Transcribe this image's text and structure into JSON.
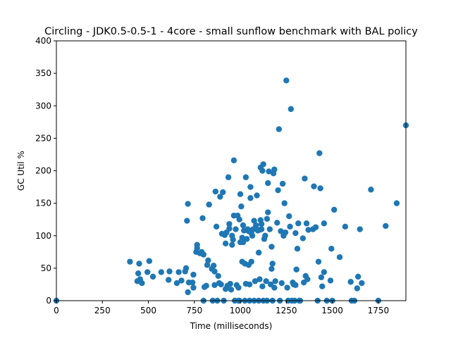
{
  "chart_data": {
    "type": "scatter",
    "title": "Circling - JDK0.5-0.5-1 - 4core -  small sunflow benchmark with BAL policy",
    "xlabel": "Time (milliseconds)",
    "ylabel": "GC Util %",
    "xlim": [
      0,
      1900
    ],
    "ylim": [
      0,
      400
    ],
    "xticks": [
      0,
      250,
      500,
      750,
      1000,
      1250,
      1500,
      1750
    ],
    "yticks": [
      0,
      50,
      100,
      150,
      200,
      250,
      300,
      350,
      400
    ],
    "grid": false,
    "color": "#1f77b4",
    "points": [
      [
        0,
        0
      ],
      [
        400,
        60
      ],
      [
        440,
        30
      ],
      [
        445,
        42
      ],
      [
        450,
        57
      ],
      [
        455,
        33
      ],
      [
        465,
        27
      ],
      [
        495,
        44
      ],
      [
        505,
        61
      ],
      [
        525,
        37
      ],
      [
        570,
        44
      ],
      [
        610,
        32
      ],
      [
        615,
        45
      ],
      [
        655,
        27
      ],
      [
        665,
        44
      ],
      [
        680,
        31
      ],
      [
        700,
        45
      ],
      [
        705,
        50
      ],
      [
        710,
        123
      ],
      [
        715,
        149
      ],
      [
        715,
        13
      ],
      [
        720,
        28
      ],
      [
        740,
        28
      ],
      [
        745,
        20
      ],
      [
        745,
        40
      ],
      [
        760,
        75
      ],
      [
        765,
        86
      ],
      [
        765,
        81
      ],
      [
        780,
        73
      ],
      [
        790,
        75
      ],
      [
        795,
        127
      ],
      [
        800,
        0
      ],
      [
        800,
        71
      ],
      [
        805,
        21
      ],
      [
        815,
        23
      ],
      [
        820,
        55
      ],
      [
        825,
        62
      ],
      [
        830,
        148
      ],
      [
        845,
        49
      ],
      [
        850,
        0
      ],
      [
        855,
        54
      ],
      [
        860,
        45
      ],
      [
        860,
        24
      ],
      [
        865,
        168
      ],
      [
        870,
        114
      ],
      [
        875,
        0
      ],
      [
        880,
        38
      ],
      [
        885,
        27
      ],
      [
        890,
        160
      ],
      [
        895,
        25
      ],
      [
        900,
        103
      ],
      [
        905,
        167
      ],
      [
        910,
        0
      ],
      [
        915,
        101
      ],
      [
        920,
        18
      ],
      [
        920,
        88
      ],
      [
        925,
        105
      ],
      [
        930,
        23
      ],
      [
        935,
        190
      ],
      [
        940,
        118
      ],
      [
        940,
        111
      ],
      [
        945,
        26
      ],
      [
        950,
        17
      ],
      [
        955,
        100
      ],
      [
        955,
        86
      ],
      [
        960,
        94
      ],
      [
        965,
        216
      ],
      [
        965,
        131
      ],
      [
        970,
        0
      ],
      [
        975,
        110
      ],
      [
        980,
        24
      ],
      [
        985,
        131
      ],
      [
        990,
        0
      ],
      [
        990,
        20
      ],
      [
        995,
        0
      ],
      [
        995,
        125
      ],
      [
        1000,
        164
      ],
      [
        1000,
        90
      ],
      [
        1005,
        145
      ],
      [
        1010,
        97
      ],
      [
        1010,
        60
      ],
      [
        1015,
        90
      ],
      [
        1015,
        116
      ],
      [
        1020,
        108
      ],
      [
        1025,
        0
      ],
      [
        1025,
        57
      ],
      [
        1030,
        190
      ],
      [
        1030,
        26
      ],
      [
        1035,
        95
      ],
      [
        1040,
        110
      ],
      [
        1045,
        107
      ],
      [
        1045,
        55
      ],
      [
        1050,
        0
      ],
      [
        1050,
        25
      ],
      [
        1055,
        158
      ],
      [
        1055,
        175
      ],
      [
        1060,
        60
      ],
      [
        1060,
        104
      ],
      [
        1065,
        100
      ],
      [
        1070,
        110
      ],
      [
        1075,
        0
      ],
      [
        1075,
        123
      ],
      [
        1080,
        30
      ],
      [
        1085,
        116
      ],
      [
        1090,
        162
      ],
      [
        1095,
        108
      ],
      [
        1100,
        0
      ],
      [
        1100,
        74
      ],
      [
        1105,
        33
      ],
      [
        1105,
        109
      ],
      [
        1110,
        205
      ],
      [
        1110,
        124
      ],
      [
        1115,
        110
      ],
      [
        1115,
        118
      ],
      [
        1120,
        200
      ],
      [
        1120,
        22
      ],
      [
        1125,
        210
      ],
      [
        1125,
        0
      ],
      [
        1130,
        95
      ],
      [
        1135,
        100
      ],
      [
        1140,
        30
      ],
      [
        1145,
        0
      ],
      [
        1145,
        126
      ],
      [
        1150,
        181
      ],
      [
        1150,
        136
      ],
      [
        1155,
        199
      ],
      [
        1160,
        110
      ],
      [
        1165,
        25
      ],
      [
        1170,
        83
      ],
      [
        1170,
        49
      ],
      [
        1175,
        57
      ],
      [
        1175,
        0
      ],
      [
        1180,
        196
      ],
      [
        1185,
        20
      ],
      [
        1185,
        202
      ],
      [
        1190,
        30
      ],
      [
        1200,
        120
      ],
      [
        1205,
        170
      ],
      [
        1210,
        264
      ],
      [
        1215,
        0
      ],
      [
        1220,
        107
      ],
      [
        1225,
        27
      ],
      [
        1230,
        180
      ],
      [
        1235,
        100
      ],
      [
        1240,
        150
      ],
      [
        1245,
        105
      ],
      [
        1250,
        339
      ],
      [
        1255,
        20
      ],
      [
        1260,
        0
      ],
      [
        1265,
        130
      ],
      [
        1270,
        114
      ],
      [
        1275,
        295
      ],
      [
        1280,
        0
      ],
      [
        1285,
        28
      ],
      [
        1290,
        25
      ],
      [
        1295,
        0
      ],
      [
        1300,
        104
      ],
      [
        1300,
        24
      ],
      [
        1305,
        48
      ],
      [
        1310,
        80
      ],
      [
        1315,
        119
      ],
      [
        1320,
        0
      ],
      [
        1325,
        0
      ],
      [
        1340,
        96
      ],
      [
        1345,
        28
      ],
      [
        1350,
        188
      ],
      [
        1355,
        38
      ],
      [
        1360,
        119
      ],
      [
        1365,
        33
      ],
      [
        1370,
        109
      ],
      [
        1395,
        110
      ],
      [
        1400,
        176
      ],
      [
        1410,
        113
      ],
      [
        1420,
        0
      ],
      [
        1425,
        60
      ],
      [
        1430,
        227
      ],
      [
        1435,
        173
      ],
      [
        1440,
        36
      ],
      [
        1445,
        22
      ],
      [
        1455,
        119
      ],
      [
        1455,
        44
      ],
      [
        1470,
        0
      ],
      [
        1490,
        31
      ],
      [
        1495,
        80
      ],
      [
        1500,
        0
      ],
      [
        1510,
        140
      ],
      [
        1540,
        67
      ],
      [
        1570,
        114
      ],
      [
        1600,
        29
      ],
      [
        1605,
        0
      ],
      [
        1620,
        0
      ],
      [
        1635,
        19
      ],
      [
        1640,
        37
      ],
      [
        1650,
        110
      ],
      [
        1660,
        27
      ],
      [
        1710,
        171
      ],
      [
        1750,
        0
      ],
      [
        1790,
        115
      ],
      [
        1850,
        150
      ],
      [
        1900,
        270
      ]
    ]
  }
}
